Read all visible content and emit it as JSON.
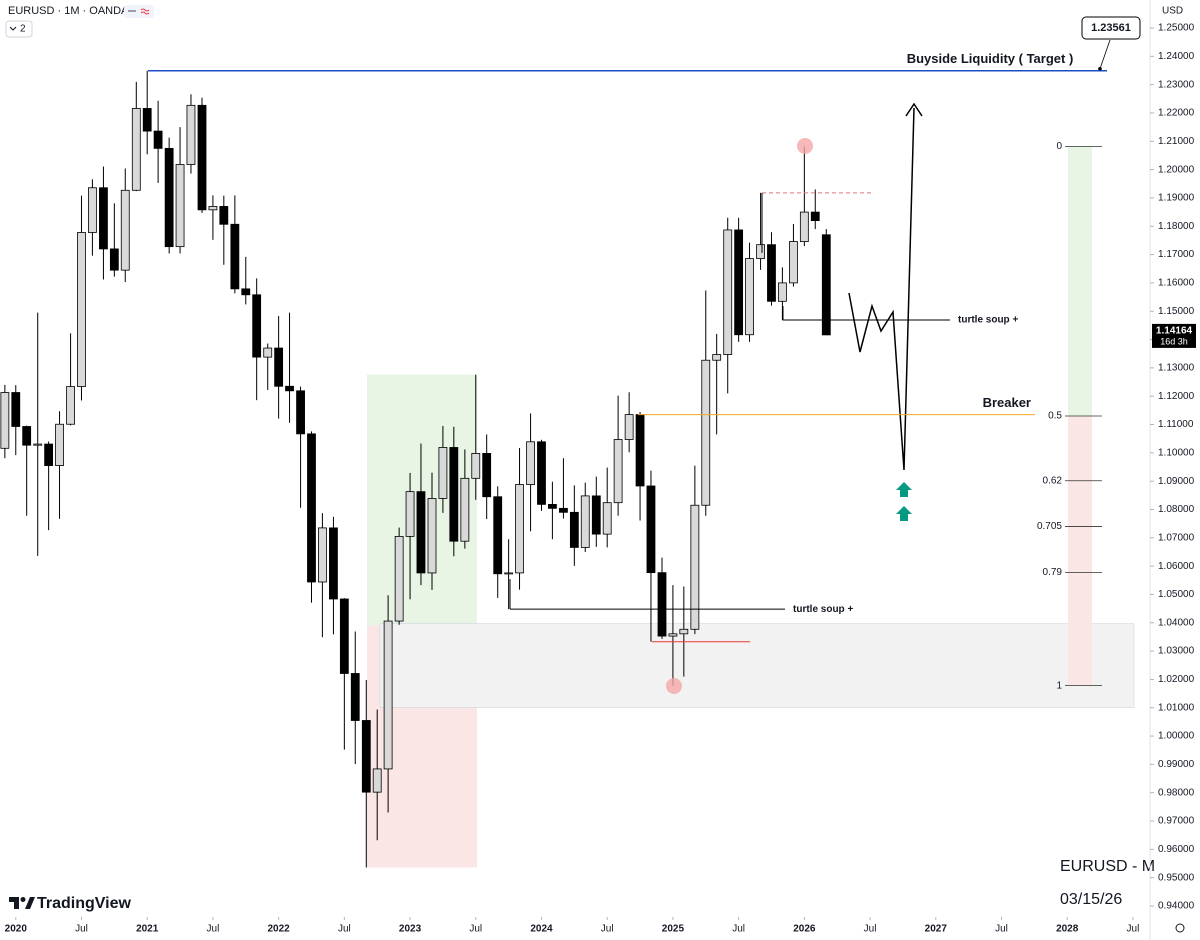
{
  "header": {
    "symbol": "EURUSD · 1M · OANDA",
    "indicator_count": 2
  },
  "price_axis_unit": "USD",
  "chart_data": {
    "type": "candlestick",
    "x": [
      2019.917,
      2020,
      2020.083,
      2020.167,
      2020.25,
      2020.333,
      2020.417,
      2020.5,
      2020.583,
      2020.667,
      2020.75,
      2020.833,
      2020.917,
      2021,
      2021.083,
      2021.167,
      2021.25,
      2021.333,
      2021.417,
      2021.5,
      2021.583,
      2021.667,
      2021.75,
      2021.833,
      2021.917,
      2022,
      2022.083,
      2022.167,
      2022.25,
      2022.333,
      2022.417,
      2022.5,
      2022.583,
      2022.667,
      2022.75,
      2022.833,
      2022.917,
      2023,
      2023.083,
      2023.167,
      2023.25,
      2023.333,
      2023.417,
      2023.5,
      2023.583,
      2023.667,
      2023.75,
      2023.833,
      2023.917,
      2024,
      2024.083,
      2024.167,
      2024.25,
      2024.333,
      2024.417,
      2024.5,
      2024.583,
      2024.667,
      2024.75,
      2024.833,
      2024.917,
      2025,
      2025.083,
      2025.167,
      2025.25,
      2025.333,
      2025.417,
      2025.5,
      2025.583,
      2025.667,
      2025.75,
      2025.833,
      2025.917,
      2026,
      2026.083,
      2026.167
    ],
    "open": [
      1.1016,
      1.1213,
      1.1093,
      1.1027,
      1.1031,
      1.0955,
      1.1101,
      1.1234,
      1.1778,
      1.1936,
      1.172,
      1.1645,
      1.1927,
      1.2216,
      1.2136,
      1.2075,
      1.1728,
      1.2018,
      1.2227,
      1.1858,
      1.187,
      1.1807,
      1.1579,
      1.1558,
      1.1338,
      1.137,
      1.1235,
      1.1219,
      1.1067,
      1.0544,
      1.0735,
      1.0484,
      1.0221,
      1.0055,
      0.9802,
      0.9884,
      1.0406,
      1.0705,
      1.0863,
      1.0576,
      1.0839,
      1.1019,
      1.0688,
      1.091,
      1.0998,
      1.0845,
      1.0573,
      1.0576,
      1.0888,
      1.1039,
      1.0818,
      1.0804,
      1.079,
      1.0666,
      1.0848,
      1.0713,
      1.0824,
      1.1047,
      1.1135,
      1.0883,
      1.0577,
      1.0353,
      1.0361,
      1.0377,
      1.0815,
      1.1327,
      1.1347,
      1.1787,
      1.1417,
      1.1686,
      1.1735,
      1.1535,
      1.16,
      1.1746,
      1.185,
      1.177
    ],
    "high": [
      1.124,
      1.1239,
      1.1096,
      1.1495,
      1.104,
      1.1147,
      1.1422,
      1.1908,
      1.1966,
      1.2011,
      1.1881,
      1.2004,
      1.231,
      1.2349,
      1.2243,
      1.2113,
      1.215,
      1.2266,
      1.2254,
      1.1909,
      1.1908,
      1.1909,
      1.1692,
      1.1616,
      1.1386,
      1.1483,
      1.1495,
      1.1234,
      1.1076,
      1.0787,
      1.0774,
      1.0487,
      1.0369,
      1.0198,
      1.0094,
      1.0497,
      1.0736,
      1.0929,
      1.1033,
      1.093,
      1.1095,
      1.1092,
      1.1012,
      1.1276,
      1.1065,
      1.0882,
      1.0695,
      1.1017,
      1.1139,
      1.1046,
      1.0898,
      1.0981,
      1.0885,
      1.0895,
      1.0916,
      1.0948,
      1.1202,
      1.1214,
      1.1144,
      1.0937,
      1.063,
      1.0533,
      1.0528,
      1.0955,
      1.1573,
      1.142,
      1.183,
      1.183,
      1.1742,
      1.1918,
      1.1779,
      1.1655,
      1.1808,
      1.2082,
      1.193,
      1.179
    ],
    "low": [
      1.0981,
      1.0992,
      1.0778,
      1.0636,
      1.0727,
      1.0767,
      1.1097,
      1.1185,
      1.1696,
      1.1612,
      1.1622,
      1.1603,
      1.1924,
      1.2054,
      1.1953,
      1.1704,
      1.1704,
      1.1986,
      1.1847,
      1.1752,
      1.1664,
      1.1563,
      1.1524,
      1.1186,
      1.1222,
      1.1121,
      1.1106,
      1.0806,
      1.0471,
      1.0349,
      1.0359,
      0.9952,
      0.9901,
      0.9536,
      0.9632,
      0.973,
      1.0393,
      1.0483,
      1.0533,
      1.0516,
      1.0788,
      1.0635,
      1.0662,
      1.0834,
      1.0766,
      1.0488,
      1.0448,
      1.0517,
      1.0723,
      1.0795,
      1.0695,
      1.0768,
      1.0601,
      1.065,
      1.0668,
      1.0666,
      1.0778,
      1.1002,
      1.0761,
      1.0333,
      1.0343,
      1.0178,
      1.021,
      1.036,
      1.0778,
      1.1065,
      1.121,
      1.1392,
      1.1392,
      1.1646,
      1.152,
      1.1468,
      1.1587,
      1.173,
      1.179,
      1.1416
    ],
    "close": [
      1.1213,
      1.1093,
      1.1027,
      1.1031,
      1.0955,
      1.1101,
      1.1234,
      1.1778,
      1.1936,
      1.172,
      1.1645,
      1.1927,
      1.2216,
      1.2136,
      1.2075,
      1.1728,
      1.2018,
      1.2227,
      1.1858,
      1.187,
      1.1807,
      1.1579,
      1.1558,
      1.1338,
      1.137,
      1.1235,
      1.1219,
      1.1067,
      1.0544,
      1.0735,
      1.0484,
      1.0221,
      1.0055,
      0.9802,
      0.9884,
      1.0406,
      1.0705,
      1.0863,
      1.0576,
      1.0839,
      1.1019,
      1.0688,
      1.091,
      1.0998,
      1.0845,
      1.0573,
      1.0576,
      1.0888,
      1.1039,
      1.0818,
      1.0804,
      1.079,
      1.0666,
      1.0848,
      1.0713,
      1.0824,
      1.1047,
      1.1135,
      1.0883,
      1.0577,
      1.0353,
      1.0361,
      1.0377,
      1.0815,
      1.1327,
      1.1347,
      1.1787,
      1.1417,
      1.1686,
      1.1735,
      1.1535,
      1.16,
      1.1746,
      1.185,
      1.182,
      1.14164
    ],
    "up_color": "#d9d9d9",
    "down_color": "#000000",
    "xlim": [
      2019.88,
      2028.63
    ],
    "xticks": [
      2020,
      {
        "value": 2020.5,
        "label": "Jul"
      },
      2021,
      {
        "value": 2021.5,
        "label": "Jul"
      },
      2022,
      {
        "value": 2022.5,
        "label": "Jul"
      },
      2023,
      {
        "value": 2023.5,
        "label": "Jul"
      },
      2024,
      {
        "value": 2024.5,
        "label": "Jul"
      },
      2025,
      {
        "value": 2025.5,
        "label": "Jul"
      },
      2026,
      {
        "value": 2026.5,
        "label": "Jul"
      },
      2027,
      {
        "value": 2027.5,
        "label": "Jul"
      },
      2028,
      {
        "value": 2028.5,
        "label": "Jul"
      }
    ],
    "ylim": [
      0.94,
      1.25
    ],
    "yticks": [
      {
        "value": 1.25,
        "label": "1.25000"
      },
      {
        "value": 1.24,
        "label": "1.24000"
      },
      {
        "value": 1.23,
        "label": "1.23000"
      },
      {
        "value": 1.22,
        "label": "1.22000"
      },
      {
        "value": 1.21,
        "label": "1.21000"
      },
      {
        "value": 1.2,
        "label": "1.20000"
      },
      {
        "value": 1.19,
        "label": "1.19000"
      },
      {
        "value": 1.18,
        "label": "1.18000"
      },
      {
        "value": 1.17,
        "label": "1.17000"
      },
      {
        "value": 1.16,
        "label": "1.16000"
      },
      {
        "value": 1.15,
        "label": "1.15000"
      },
      {
        "value": 1.14,
        "label": "1.14000"
      },
      {
        "value": 1.13,
        "label": "1.13000"
      },
      {
        "value": 1.12,
        "label": "1.12000"
      },
      {
        "value": 1.11,
        "label": "1.11000"
      },
      {
        "value": 1.1,
        "label": "1.10000"
      },
      {
        "value": 1.09,
        "label": "1.09000"
      },
      {
        "value": 1.08,
        "label": "1.08000"
      },
      {
        "value": 1.07,
        "label": "1.07000"
      },
      {
        "value": 1.06,
        "label": "1.06000"
      },
      {
        "value": 1.05,
        "label": "1.05000"
      },
      {
        "value": 1.04,
        "label": "1.04000"
      },
      {
        "value": 1.03,
        "label": "1.03000"
      },
      {
        "value": 1.02,
        "label": "1.02000"
      },
      {
        "value": 1.01,
        "label": "1.01000"
      },
      {
        "value": 1.0,
        "label": "1.00000"
      },
      {
        "value": 0.99,
        "label": "0.99000"
      },
      {
        "value": 0.98,
        "label": "0.98000"
      },
      {
        "value": 0.97,
        "label": "0.97000"
      },
      {
        "value": 0.96,
        "label": "0.96000"
      },
      {
        "value": 0.95,
        "label": "0.95000"
      },
      {
        "value": 0.94,
        "label": "0.94000"
      }
    ],
    "grid": false,
    "annotations": {
      "buyside_liquidity": {
        "label": "Buyside Liquidity ( Target )",
        "price": 1.2349,
        "color": "#1e4fc7"
      },
      "target": 1.23561,
      "breaker": {
        "label": "Breaker",
        "price": 1.1135,
        "color": "#f5a623"
      },
      "turtle_soup": [
        {
          "label": "turtle soup +",
          "price": 1.1469
        },
        {
          "label": "turtle soup +",
          "price": 1.0448
        }
      ],
      "swing_high": 1.1918,
      "swing_low": 1.0333,
      "upper_zone": {
        "range": [
          1.039,
          1.1276
        ],
        "color": "#e8f4e4"
      },
      "lower_zone": {
        "range": [
          0.9536,
          1.039
        ],
        "color": "#fbe6e6"
      },
      "gray_zone": {
        "range": [
          1.0101,
          1.0397
        ],
        "color": "#f2f2f2"
      },
      "fib": {
        "high": 1.2082,
        "low": 1.0178,
        "levels": [
          0,
          0.5,
          0.62,
          0.705,
          0.79,
          1
        ]
      }
    },
    "last_price": 1.14164,
    "countdown": "16d 3h"
  },
  "watermark": {
    "symbol": "EURUSD - M",
    "date": "03/15/26"
  },
  "brand": "TradingView"
}
